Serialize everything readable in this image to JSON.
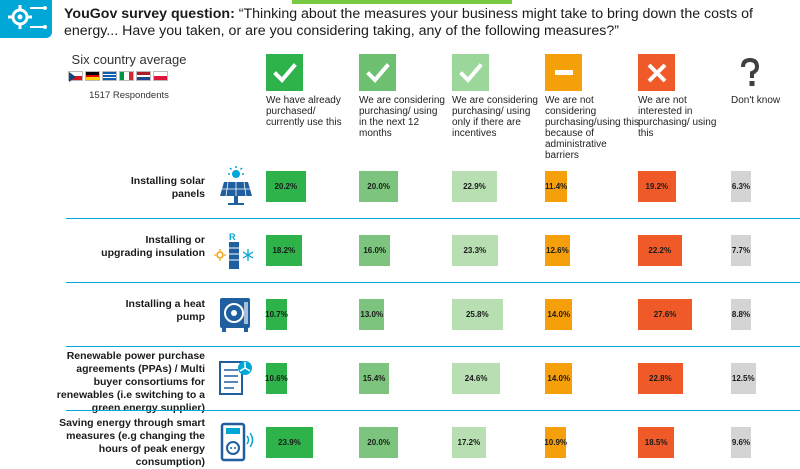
{
  "question": {
    "prefix": "YouGov survey question:",
    "text": " “Thinking about the measures your business might take to bring down the costs of energy... Have you taken, or are you considering taking, any of the following measures?”"
  },
  "sample": {
    "title": "Six country average",
    "respondents": "1517 Respondents"
  },
  "chart_data": {
    "type": "table",
    "columns": [
      {
        "label": "We have already purchased/ currently use this",
        "icon": "check-icon",
        "color": "#2eb34a"
      },
      {
        "label": "We are considering purchasing/ using in the next 12 months",
        "icon": "check-icon",
        "color": "#7dc47e"
      },
      {
        "label": "We are considering purchasing/ using only if there are incentives",
        "icon": "check-icon",
        "color": "#b7dfb2"
      },
      {
        "label": "We are not considering purchasing/using this because of administrative barriers",
        "icon": "minus-icon",
        "color": "#f5a00a"
      },
      {
        "label": "We are not interested in purchasing/ using this",
        "icon": "cross-icon",
        "color": "#f05a28"
      },
      {
        "label": "Don't know",
        "icon": "question-icon",
        "color": "#d4d4d4"
      }
    ],
    "rows": [
      {
        "label": "Installing solar panels",
        "icon": "solar-panel-icon",
        "values": [
          20.2,
          20.0,
          22.9,
          11.4,
          19.2,
          6.3
        ],
        "labels": [
          "20.2%",
          "20.0%",
          "22.9%",
          "11.4%",
          "19.2%",
          "6.3%"
        ]
      },
      {
        "label": "Installing or upgrading insulation",
        "icon": "insulation-icon",
        "values": [
          18.2,
          16.0,
          23.3,
          12.6,
          22.2,
          7.7
        ],
        "labels": [
          "18.2%",
          "16.0%",
          "23.3%",
          "12.6%",
          "22.2%",
          "7.7%"
        ]
      },
      {
        "label": "Installing a heat pump",
        "icon": "heat-pump-icon",
        "values": [
          10.7,
          13.0,
          25.8,
          14.0,
          27.6,
          8.8
        ],
        "labels": [
          "10.7%",
          "13.0%",
          "25.8%",
          "14.0%",
          "27.6%",
          "8.8%"
        ]
      },
      {
        "label": "Renewable power purchase agreements (PPAs) / Multi buyer consortiums for renewables (i.e switching to a green energy supplier)",
        "icon": "contract-icon",
        "values": [
          10.6,
          15.4,
          24.6,
          14.0,
          22.8,
          12.5
        ],
        "labels": [
          "10.6%",
          "15.4%",
          "24.6%",
          "14.0%",
          "22.8%",
          "12.5%"
        ]
      },
      {
        "label": "Saving energy through smart measures (e.g changing the hours of peak energy consumption)",
        "icon": "smart-plug-icon",
        "values": [
          23.9,
          20.0,
          17.2,
          10.9,
          18.5,
          9.6
        ],
        "labels": [
          "23.9%",
          "20.0%",
          "17.2%",
          "10.9%",
          "18.5%",
          "9.6%"
        ]
      }
    ]
  },
  "colors": {
    "accent": "#00a6d6",
    "flags": {
      "cz": [
        "#ffffff",
        "#d7141a",
        "#11457e"
      ],
      "de": [
        "#000000",
        "#dd0000",
        "#ffce00"
      ],
      "gr": [
        "#0d5eaf",
        "#ffffff",
        "#0d5eaf",
        "#ffffff",
        "#0d5eaf"
      ],
      "it": [
        "#009246",
        "#ffffff",
        "#ce2b37"
      ],
      "nl": [
        "#ae1c28",
        "#ffffff",
        "#21468b"
      ],
      "pl": [
        "#ffffff",
        "#dc143c"
      ]
    }
  }
}
